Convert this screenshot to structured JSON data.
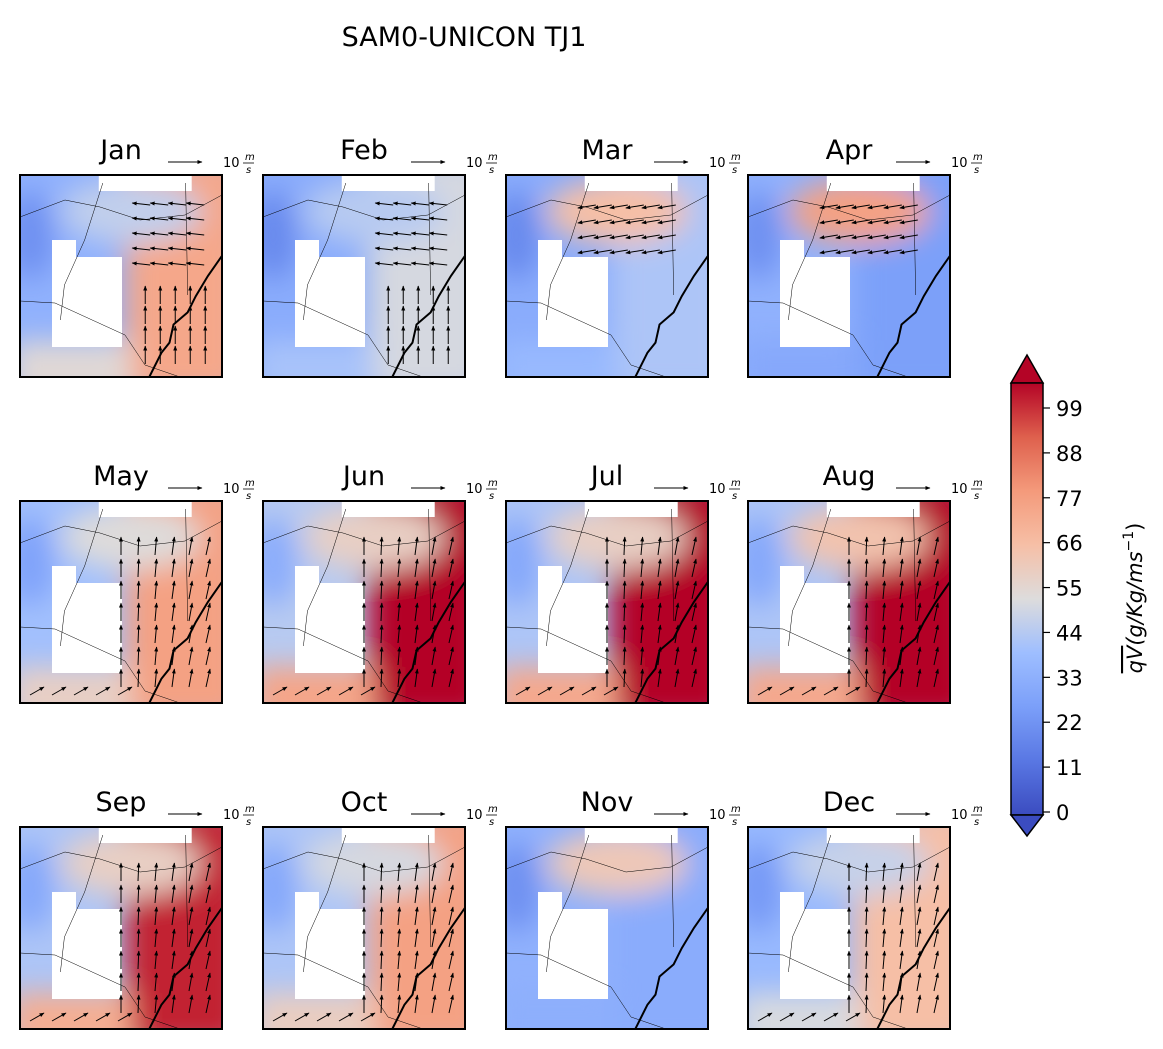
{
  "title": "SAM0-UNICON TJ1",
  "chart_data": {
    "type": "heatmap",
    "title": "SAM0-UNICON TJ1",
    "panels": [
      {
        "month": "Jan",
        "base": 32,
        "east": 70,
        "north": 44,
        "arrows": "mixed"
      },
      {
        "month": "Feb",
        "base": 30,
        "east": 48,
        "north": 42,
        "arrows": "mixed"
      },
      {
        "month": "Mar",
        "base": 30,
        "east": 40,
        "north": 62,
        "arrows": "west"
      },
      {
        "month": "Apr",
        "base": 32,
        "east": 25,
        "north": 72,
        "arrows": "west"
      },
      {
        "month": "May",
        "base": 38,
        "east": 72,
        "north": 50,
        "arrows": "north"
      },
      {
        "month": "Jun",
        "base": 42,
        "east": 99,
        "north": 55,
        "arrows": "north"
      },
      {
        "month": "Jul",
        "base": 40,
        "east": 99,
        "north": 55,
        "arrows": "north"
      },
      {
        "month": "Aug",
        "base": 40,
        "east": 99,
        "north": 60,
        "arrows": "north"
      },
      {
        "month": "Sep",
        "base": 40,
        "east": 95,
        "north": 55,
        "arrows": "north"
      },
      {
        "month": "Oct",
        "base": 40,
        "east": 72,
        "north": 48,
        "arrows": "north"
      },
      {
        "month": "Nov",
        "base": 32,
        "east": 30,
        "north": 58,
        "arrows": "none"
      },
      {
        "month": "Dec",
        "base": 35,
        "east": 62,
        "north": 45,
        "arrows": "north"
      }
    ],
    "reference_vector": {
      "label_base": "10",
      "label_num": "m",
      "label_den": "s"
    },
    "colorbar": {
      "ticks": [
        0,
        11,
        22,
        33,
        44,
        55,
        66,
        77,
        88,
        99
      ],
      "range": [
        0,
        99
      ],
      "colormap": "coolwarm",
      "extend": "both",
      "label_prefix": "qV",
      "label_rest": "(g/Kg/ms",
      "label_exp": "−1",
      "label_close": ")"
    }
  }
}
